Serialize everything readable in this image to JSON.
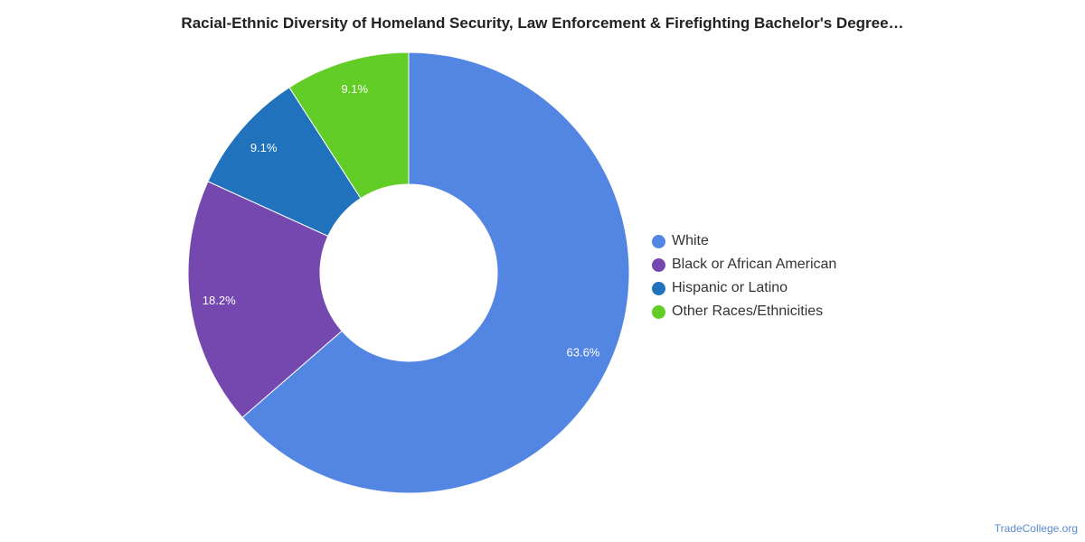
{
  "title": "Racial-Ethnic Diversity of Homeland Security, Law Enforcement & Firefighting Bachelor's Degree…",
  "source": "TradeCollege.org",
  "chart_data": {
    "type": "pie",
    "variant": "donut",
    "title": "Racial-Ethnic Diversity of Homeland Security, Law Enforcement & Firefighting Bachelor's Degree…",
    "legend_position": "right",
    "slices": [
      {
        "name": "White",
        "value": 63.6,
        "label": "63.6%",
        "color": "#5385e3"
      },
      {
        "name": "Black or African American",
        "value": 18.2,
        "label": "18.2%",
        "color": "#7548b0"
      },
      {
        "name": "Hispanic or Latino",
        "value": 9.1,
        "label": "9.1%",
        "color": "#1f72bb"
      },
      {
        "name": "Other Races/Ethnicities",
        "value": 9.1,
        "label": "9.1%",
        "color": "#62cd26"
      }
    ]
  }
}
